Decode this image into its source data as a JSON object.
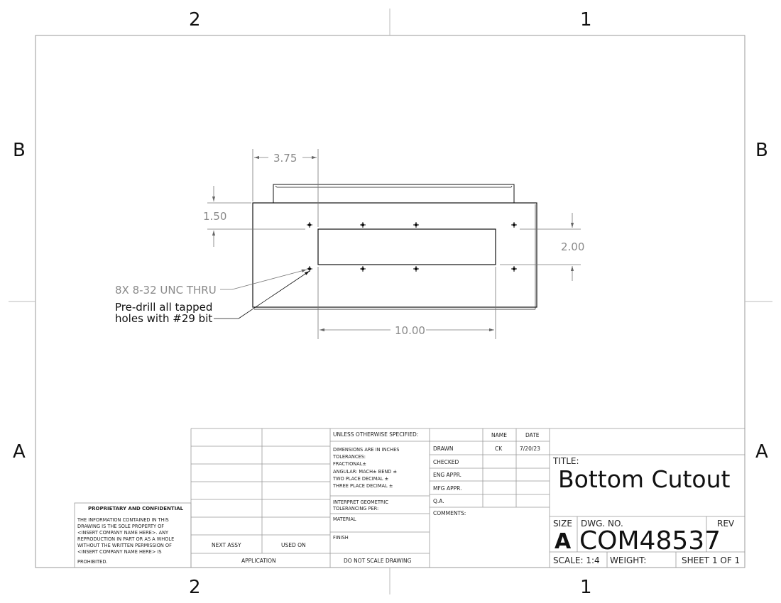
{
  "zones": {
    "top_left": "2",
    "top_right": "1",
    "bottom_left": "2",
    "bottom_right": "1",
    "left_upper": "B",
    "left_lower": "A",
    "right_upper": "B",
    "right_lower": "A"
  },
  "dimensions": {
    "hole_offset_x": "3.75",
    "hole_offset_y": "1.50",
    "hole_spacing_y": "2.00",
    "cutout_width": "10.00"
  },
  "notes": {
    "hole_callout": "8X 8-32 UNC  THRU",
    "predrill_line1": "Pre-drill all tapped",
    "predrill_line2": "holes with #29 bit"
  },
  "title_block": {
    "proprietary_heading": "PROPRIETARY AND CONFIDENTIAL",
    "proprietary_lines": [
      "THE INFORMATION CONTAINED IN THIS",
      "DRAWING IS THE SOLE PROPERTY OF",
      "<INSERT COMPANY NAME HERE>.  ANY",
      "REPRODUCTION IN PART OR AS A WHOLE",
      "WITHOUT THE WRITTEN PERMISSION OF",
      "<INSERT COMPANY NAME HERE> IS",
      "PROHIBITED."
    ],
    "next_assy": "NEXT ASSY",
    "used_on": "USED ON",
    "application": "APPLICATION",
    "unless_specified": "UNLESS OTHERWISE SPECIFIED:",
    "tolerance_lines": [
      "DIMENSIONS ARE IN INCHES",
      "TOLERANCES:",
      "FRACTIONAL±",
      "ANGULAR: MACH±    BEND ±",
      "TWO PLACE DECIMAL    ±",
      "THREE PLACE DECIMAL   ±"
    ],
    "geometric_lines": [
      "INTERPRET GEOMETRIC",
      "TOLERANCING PER:"
    ],
    "material": "MATERIAL",
    "finish": "FINISH",
    "do_not_scale": "DO NOT SCALE DRAWING",
    "col_name": "NAME",
    "col_date": "DATE",
    "drawn": "DRAWN",
    "drawn_name": "CK",
    "drawn_date": "7/20/23",
    "checked": "CHECKED",
    "eng_appr": "ENG APPR.",
    "mfg_appr": "MFG APPR.",
    "qa": "Q.A.",
    "comments": "COMMENTS:",
    "title_label": "TITLE:",
    "title": "Bottom Cutout",
    "size_label": "SIZE",
    "size": "A",
    "dwg_no_label": "DWG.  NO.",
    "dwg_no": "COM48537",
    "rev_label": "REV",
    "scale": "SCALE: 1:4",
    "weight": "WEIGHT:",
    "sheet": "SHEET 1 OF 1"
  }
}
